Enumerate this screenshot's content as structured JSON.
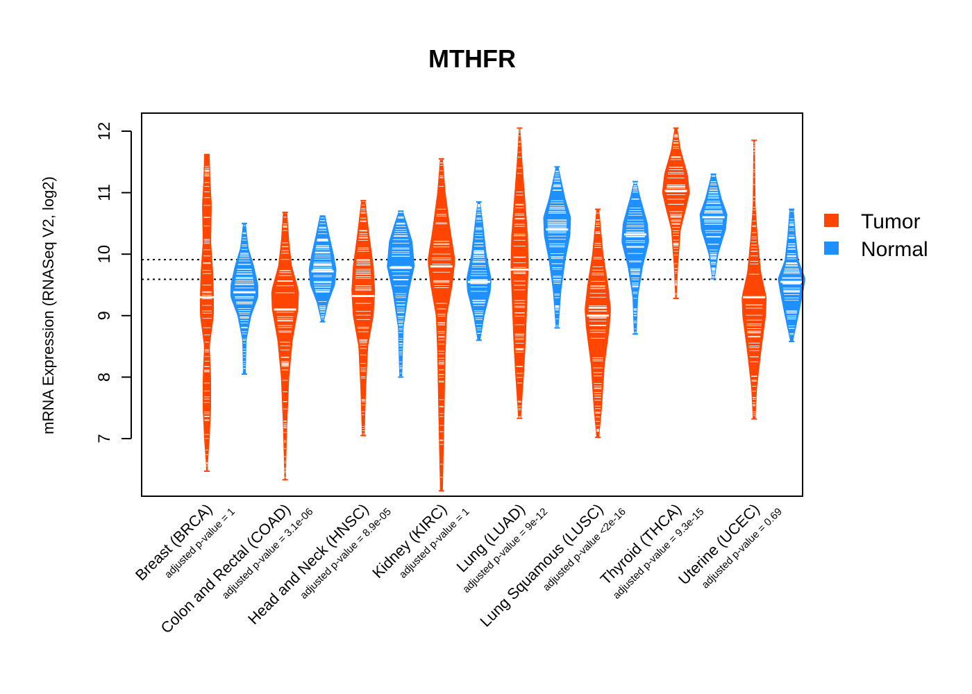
{
  "chart_data": {
    "type": "beanplot",
    "title": "MTHFR",
    "ylabel": "mRNA Expression (RNASeq V2, log2)",
    "ylim": [
      6.1,
      12.3
    ],
    "yticks": [
      7,
      8,
      9,
      10,
      11,
      12
    ],
    "reference_lines": [
      9.91,
      9.59
    ],
    "colors": {
      "tumor": "#FF4500",
      "normal": "#1E90FF"
    },
    "legend": [
      {
        "label": "Tumor",
        "color": "#FF4500"
      },
      {
        "label": "Normal",
        "color": "#1E90FF"
      }
    ],
    "groups": [
      {
        "cancer": "Breast (BRCA)",
        "pvalue": "adjusted p-value = 1",
        "tumor": {
          "median": 9.3,
          "min": 6.47,
          "max": 11.62,
          "shape": [
            [
              6.5,
              0.04
            ],
            [
              7.0,
              0.2
            ],
            [
              7.5,
              0.3
            ],
            [
              8.0,
              0.3
            ],
            [
              8.5,
              0.2
            ],
            [
              9.0,
              0.5
            ],
            [
              9.3,
              0.5
            ],
            [
              9.7,
              0.45
            ],
            [
              10.2,
              0.3
            ],
            [
              10.8,
              0.35
            ],
            [
              11.2,
              0.25
            ],
            [
              11.62,
              0.2
            ]
          ]
        },
        "normal": {
          "median": 9.38,
          "min": 8.05,
          "max": 10.5,
          "shape": [
            [
              8.05,
              0.1
            ],
            [
              8.6,
              0.15
            ],
            [
              9.0,
              0.5
            ],
            [
              9.3,
              1.0
            ],
            [
              9.5,
              1.0
            ],
            [
              9.8,
              0.7
            ],
            [
              10.1,
              0.3
            ],
            [
              10.5,
              0.1
            ]
          ]
        }
      },
      {
        "cancer": "Colon and Rectal (COAD)",
        "pvalue": "adjusted p-value = 3.1e-06",
        "tumor": {
          "median": 9.1,
          "min": 6.33,
          "max": 10.68,
          "shape": [
            [
              6.33,
              0.05
            ],
            [
              7.2,
              0.15
            ],
            [
              8.0,
              0.3
            ],
            [
              8.6,
              0.55
            ],
            [
              9.1,
              0.95
            ],
            [
              9.4,
              1.0
            ],
            [
              9.8,
              0.5
            ],
            [
              10.2,
              0.3
            ],
            [
              10.68,
              0.15
            ]
          ]
        },
        "normal": {
          "median": 9.72,
          "min": 8.9,
          "max": 10.62,
          "shape": [
            [
              8.9,
              0.1
            ],
            [
              9.2,
              0.4
            ],
            [
              9.5,
              0.9
            ],
            [
              9.75,
              1.0
            ],
            [
              10.0,
              0.8
            ],
            [
              10.3,
              0.5
            ],
            [
              10.62,
              0.2
            ]
          ]
        }
      },
      {
        "cancer": "Head and Neck (HNSC)",
        "pvalue": "adjusted p-value = 8.9e-05",
        "tumor": {
          "median": 9.32,
          "min": 7.05,
          "max": 10.87,
          "shape": [
            [
              7.05,
              0.1
            ],
            [
              7.8,
              0.2
            ],
            [
              8.5,
              0.35
            ],
            [
              9.0,
              0.75
            ],
            [
              9.4,
              0.85
            ],
            [
              9.8,
              0.75
            ],
            [
              10.3,
              0.45
            ],
            [
              10.87,
              0.15
            ]
          ]
        },
        "normal": {
          "median": 9.78,
          "min": 8.0,
          "max": 10.7,
          "shape": [
            [
              8.0,
              0.1
            ],
            [
              8.8,
              0.2
            ],
            [
              9.4,
              0.6
            ],
            [
              9.8,
              1.0
            ],
            [
              10.2,
              0.85
            ],
            [
              10.5,
              0.45
            ],
            [
              10.7,
              0.15
            ]
          ]
        }
      },
      {
        "cancer": "Kidney (KIRC)",
        "pvalue": "adjusted p-value = 1",
        "tumor": {
          "median": 9.8,
          "min": 6.15,
          "max": 11.55,
          "shape": [
            [
              6.15,
              0.1
            ],
            [
              7.2,
              0.2
            ],
            [
              8.4,
              0.3
            ],
            [
              9.0,
              0.4
            ],
            [
              9.5,
              0.8
            ],
            [
              9.9,
              1.0
            ],
            [
              10.4,
              0.65
            ],
            [
              11.0,
              0.3
            ],
            [
              11.55,
              0.1
            ]
          ]
        },
        "normal": {
          "median": 9.55,
          "min": 8.6,
          "max": 10.85,
          "shape": [
            [
              8.6,
              0.1
            ],
            [
              9.0,
              0.4
            ],
            [
              9.4,
              0.85
            ],
            [
              9.6,
              0.9
            ],
            [
              10.0,
              0.55
            ],
            [
              10.5,
              0.3
            ],
            [
              10.85,
              0.1
            ]
          ]
        }
      },
      {
        "cancer": "Lung (LUAD)",
        "pvalue": "adjusted p-value = 9e-12",
        "tumor": {
          "median": 9.75,
          "min": 7.33,
          "max": 12.05,
          "shape": [
            [
              7.33,
              0.1
            ],
            [
              8.0,
              0.3
            ],
            [
              8.6,
              0.45
            ],
            [
              9.2,
              0.55
            ],
            [
              9.8,
              0.65
            ],
            [
              10.3,
              0.6
            ],
            [
              10.9,
              0.4
            ],
            [
              11.5,
              0.2
            ],
            [
              12.05,
              0.05
            ]
          ]
        },
        "normal": {
          "median": 10.4,
          "min": 8.8,
          "max": 11.42,
          "shape": [
            [
              8.8,
              0.1
            ],
            [
              9.4,
              0.3
            ],
            [
              9.9,
              0.6
            ],
            [
              10.3,
              0.95
            ],
            [
              10.6,
              1.0
            ],
            [
              10.9,
              0.6
            ],
            [
              11.42,
              0.1
            ]
          ]
        }
      },
      {
        "cancer": "Lung Squamous (LUSC)",
        "pvalue": "adjusted p-value <2e-16",
        "tumor": {
          "median": 9.0,
          "min": 7.02,
          "max": 10.73,
          "shape": [
            [
              7.02,
              0.1
            ],
            [
              7.5,
              0.3
            ],
            [
              8.2,
              0.5
            ],
            [
              8.8,
              0.85
            ],
            [
              9.1,
              0.95
            ],
            [
              9.5,
              0.75
            ],
            [
              10.0,
              0.4
            ],
            [
              10.5,
              0.2
            ],
            [
              10.73,
              0.1
            ]
          ]
        },
        "normal": {
          "median": 10.32,
          "min": 8.7,
          "max": 11.18,
          "shape": [
            [
              8.7,
              0.1
            ],
            [
              9.3,
              0.2
            ],
            [
              9.8,
              0.55
            ],
            [
              10.2,
              1.0
            ],
            [
              10.5,
              0.9
            ],
            [
              10.9,
              0.4
            ],
            [
              11.18,
              0.1
            ]
          ]
        }
      },
      {
        "cancer": "Thyroid (THCA)",
        "pvalue": "adjusted p-value = 9.3e-15",
        "tumor": {
          "median": 11.03,
          "min": 9.28,
          "max": 12.05,
          "shape": [
            [
              9.28,
              0.05
            ],
            [
              9.8,
              0.15
            ],
            [
              10.4,
              0.35
            ],
            [
              10.8,
              0.8
            ],
            [
              11.0,
              1.0
            ],
            [
              11.3,
              0.85
            ],
            [
              11.7,
              0.35
            ],
            [
              12.05,
              0.1
            ]
          ]
        },
        "normal": {
          "median": 10.6,
          "min": 9.6,
          "max": 11.3,
          "shape": [
            [
              9.6,
              0.1
            ],
            [
              10.0,
              0.35
            ],
            [
              10.4,
              0.9
            ],
            [
              10.65,
              1.0
            ],
            [
              10.9,
              0.6
            ],
            [
              11.3,
              0.15
            ]
          ]
        }
      },
      {
        "cancer": "Uterine (UCEC)",
        "pvalue": "adjusted p-value = 0.69",
        "tumor": {
          "median": 9.3,
          "min": 7.32,
          "max": 11.85,
          "shape": [
            [
              7.32,
              0.1
            ],
            [
              7.8,
              0.2
            ],
            [
              8.4,
              0.5
            ],
            [
              9.0,
              0.85
            ],
            [
              9.3,
              0.9
            ],
            [
              9.7,
              0.5
            ],
            [
              10.3,
              0.25
            ],
            [
              10.8,
              0.1
            ],
            [
              11.85,
              0.05
            ]
          ]
        },
        "normal": {
          "median": 9.55,
          "min": 8.58,
          "max": 10.73,
          "shape": [
            [
              8.58,
              0.1
            ],
            [
              9.0,
              0.5
            ],
            [
              9.4,
              0.85
            ],
            [
              9.6,
              1.0
            ],
            [
              9.9,
              0.5
            ],
            [
              10.3,
              0.3
            ],
            [
              10.73,
              0.15
            ]
          ]
        }
      }
    ]
  }
}
